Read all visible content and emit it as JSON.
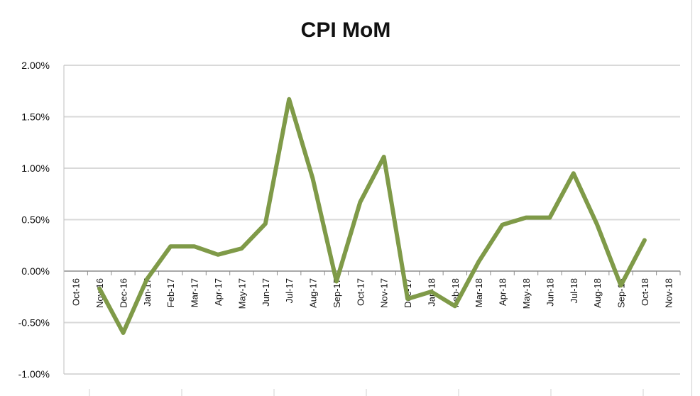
{
  "chart_data": {
    "type": "line",
    "title": "CPI MoM",
    "xlabel": "",
    "ylabel": "",
    "categories": [
      "Oct-16",
      "Nov-16",
      "Dec-16",
      "Jan-17",
      "Feb-17",
      "Mar-17",
      "Apr-17",
      "May-17",
      "Jun-17",
      "Jul-17",
      "Aug-17",
      "Sep-17",
      "Oct-17",
      "Nov-17",
      "Dec-17",
      "Jan-18",
      "Feb-18",
      "Mar-18",
      "Apr-18",
      "May-18",
      "Jun-18",
      "Jul-18",
      "Aug-18",
      "Sep-18",
      "Oct-18",
      "Nov-18"
    ],
    "series": [
      {
        "values": [
          null,
          -0.17,
          -0.6,
          -0.08,
          0.24,
          0.24,
          0.16,
          0.22,
          0.46,
          1.67,
          0.9,
          -0.1,
          0.67,
          1.11,
          -0.27,
          -0.2,
          -0.34,
          0.09,
          0.45,
          0.52,
          0.52,
          0.95,
          0.45,
          -0.14,
          0.3,
          null
        ],
        "color": "#7f9a48"
      }
    ],
    "y_ticks": [
      "2.00%",
      "1.50%",
      "1.00%",
      "0.50%",
      "0.00%",
      "-0.50%",
      "-1.00%"
    ],
    "ylim": [
      -1.0,
      2.0
    ],
    "grid": true,
    "legend": "none"
  }
}
